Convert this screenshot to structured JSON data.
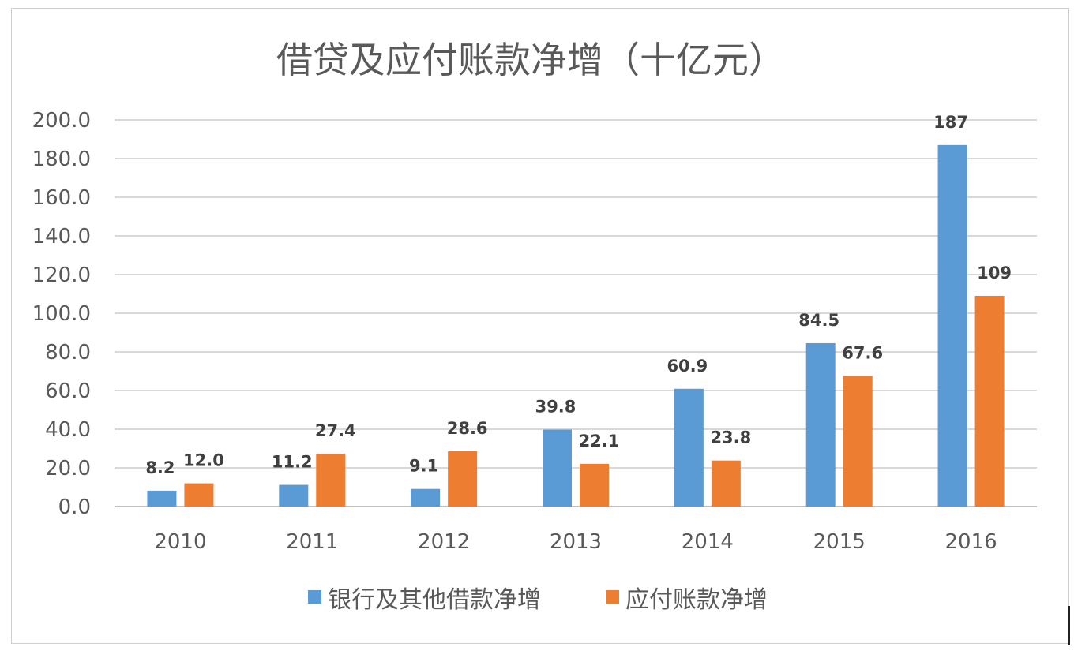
{
  "chart_data": {
    "type": "bar",
    "title": "借贷及应付账款净增（十亿元）",
    "categories": [
      "2010",
      "2011",
      "2012",
      "2013",
      "2014",
      "2015",
      "2016"
    ],
    "ylim": [
      0,
      200
    ],
    "yticks": [
      "0.0",
      "20.0",
      "40.0",
      "60.0",
      "80.0",
      "100.0",
      "120.0",
      "140.0",
      "160.0",
      "180.0",
      "200.0"
    ],
    "grid": true,
    "legend_position": "bottom",
    "xlabel": "",
    "ylabel": "",
    "series": [
      {
        "name": "银行及其他借款净增",
        "color": "#5B9BD5",
        "values": [
          8.2,
          11.2,
          9.1,
          39.8,
          60.9,
          84.5,
          187
        ],
        "labels": [
          "8.2",
          "11.2",
          "9.1",
          "39.8",
          "60.9",
          "84.5",
          "187"
        ]
      },
      {
        "name": "应付账款净增",
        "color": "#ED7D31",
        "values": [
          12.0,
          27.4,
          28.6,
          22.1,
          23.8,
          67.6,
          109
        ],
        "labels": [
          "12.0",
          "27.4",
          "28.6",
          "22.1",
          "23.8",
          "67.6",
          "109"
        ]
      }
    ]
  }
}
